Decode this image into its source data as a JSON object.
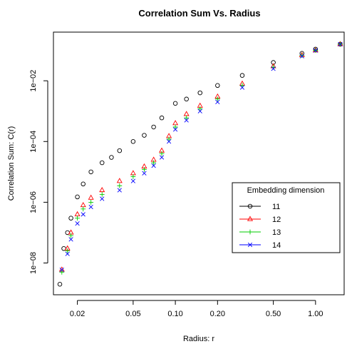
{
  "chart_data": {
    "type": "scatter",
    "title": "Correlation Sum Vs. Radius",
    "xlabel": "Radius: r",
    "ylabel": "Correlation Sum: C(r)",
    "x_scale": "log",
    "y_scale": "log",
    "xlim": [
      0.0135,
      1.6
    ],
    "ylim": [
      9e-10,
      0.4
    ],
    "x_ticks": [
      {
        "value": 0.02,
        "label": "0.02"
      },
      {
        "value": 0.05,
        "label": "0.05"
      },
      {
        "value": 0.1,
        "label": "0.10"
      },
      {
        "value": 0.2,
        "label": "0.20"
      },
      {
        "value": 0.5,
        "label": "0.50"
      },
      {
        "value": 1.0,
        "label": "1.00"
      }
    ],
    "y_ticks": [
      {
        "value": 1e-08,
        "label": "1e−08"
      },
      {
        "value": 1e-06,
        "label": "1e−06"
      },
      {
        "value": 0.0001,
        "label": "1e−04"
      },
      {
        "value": 0.01,
        "label": "1e−02"
      }
    ],
    "legend": {
      "title": "Embedding dimension",
      "position": "right"
    },
    "series": [
      {
        "name": "11",
        "color": "#000000",
        "marker": "circle",
        "x": [
          0.015,
          0.016,
          0.017,
          0.018,
          0.02,
          0.022,
          0.025,
          0.03,
          0.035,
          0.04,
          0.05,
          0.06,
          0.07,
          0.08,
          0.1,
          0.12,
          0.15,
          0.2,
          0.3,
          0.5,
          0.8,
          1.0,
          1.5
        ],
        "y": [
          2e-09,
          3e-08,
          1e-07,
          3e-07,
          1.5e-06,
          4e-06,
          1e-05,
          2e-05,
          3e-05,
          5e-05,
          0.0001,
          0.00016,
          0.0003,
          0.0006,
          0.0018,
          0.0025,
          0.004,
          0.007,
          0.015,
          0.04,
          0.08,
          0.11,
          0.16
        ]
      },
      {
        "name": "12",
        "color": "#ff0000",
        "marker": "triangle",
        "x": [
          0.0155,
          0.017,
          0.018,
          0.02,
          0.022,
          0.025,
          0.03,
          0.04,
          0.05,
          0.06,
          0.07,
          0.08,
          0.09,
          0.1,
          0.12,
          0.15,
          0.2,
          0.3,
          0.5,
          0.8,
          1.0,
          1.5
        ],
        "y": [
          6e-09,
          3e-08,
          1e-07,
          4e-07,
          8e-07,
          1.4e-06,
          2.5e-06,
          5e-06,
          9e-06,
          1.5e-05,
          2.5e-05,
          5e-05,
          0.00015,
          0.0004,
          0.0008,
          0.0015,
          0.003,
          0.008,
          0.03,
          0.07,
          0.1,
          0.16
        ]
      },
      {
        "name": "13",
        "color": "#00cc00",
        "marker": "plus",
        "x": [
          0.0155,
          0.017,
          0.018,
          0.02,
          0.022,
          0.025,
          0.03,
          0.04,
          0.05,
          0.06,
          0.07,
          0.08,
          0.09,
          0.1,
          0.12,
          0.15,
          0.2,
          0.3,
          0.5,
          0.8,
          1.0,
          1.5
        ],
        "y": [
          5e-09,
          2.5e-08,
          8e-08,
          3e-07,
          6e-07,
          1e-06,
          1.8e-06,
          3.5e-06,
          7e-06,
          1.2e-05,
          2e-05,
          4e-05,
          0.00012,
          0.0003,
          0.0006,
          0.0012,
          0.0025,
          0.007,
          0.028,
          0.068,
          0.1,
          0.16
        ]
      },
      {
        "name": "14",
        "color": "#0000ff",
        "marker": "x",
        "x": [
          0.0155,
          0.017,
          0.018,
          0.02,
          0.022,
          0.025,
          0.03,
          0.04,
          0.05,
          0.06,
          0.07,
          0.08,
          0.09,
          0.1,
          0.12,
          0.15,
          0.2,
          0.3,
          0.5,
          0.8,
          1.0,
          1.5
        ],
        "y": [
          6e-09,
          2e-08,
          6e-08,
          2e-07,
          4e-07,
          7e-07,
          1.3e-06,
          2.5e-06,
          5e-06,
          9e-06,
          1.6e-05,
          3e-05,
          0.0001,
          0.00025,
          0.0005,
          0.001,
          0.002,
          0.006,
          0.025,
          0.065,
          0.1,
          0.16
        ]
      }
    ]
  }
}
